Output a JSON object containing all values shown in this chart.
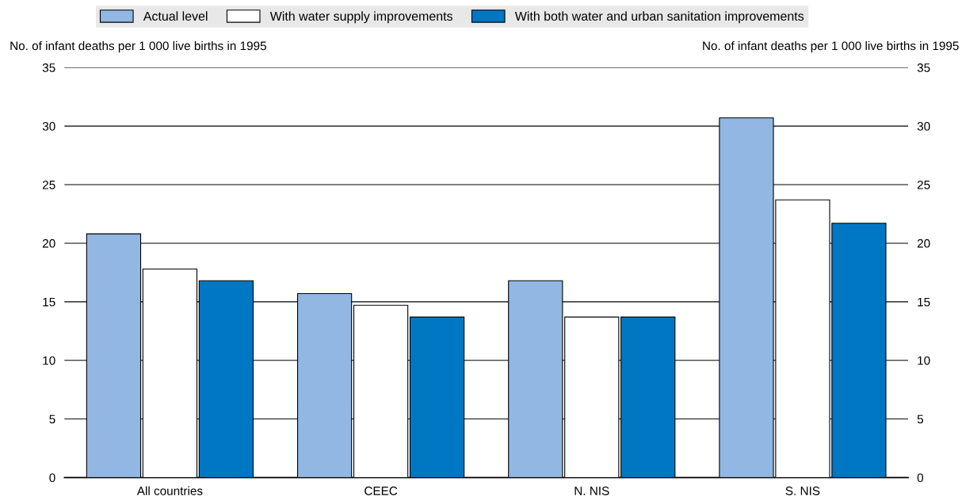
{
  "chart_data": {
    "type": "bar",
    "categories": [
      "All countries",
      "CEEC",
      "N. NIS",
      "S. NIS"
    ],
    "series": [
      {
        "name": "Actual level",
        "color": "#92b7e2",
        "values": [
          20.8,
          15.7,
          16.8,
          30.7
        ]
      },
      {
        "name": "With water supply improvements",
        "color": "#ffffff",
        "values": [
          17.8,
          14.7,
          13.7,
          23.7
        ]
      },
      {
        "name": "With both water and urban sanitation improvements",
        "color": "#0077c2",
        "values": [
          16.8,
          13.7,
          13.7,
          21.7
        ]
      }
    ],
    "ylabel": "No. of infant deaths per 1 000 live births in 1995",
    "y2label": "No. of infant deaths per 1 000 live births in 1995",
    "ylim": [
      0,
      35
    ],
    "yticks": [
      0,
      5,
      10,
      15,
      20,
      25,
      30,
      35
    ],
    "y2lim": [
      0,
      35
    ],
    "y2ticks": [
      0,
      5,
      10,
      15,
      20,
      25,
      30,
      35
    ],
    "grid": "y",
    "legend": "top"
  }
}
